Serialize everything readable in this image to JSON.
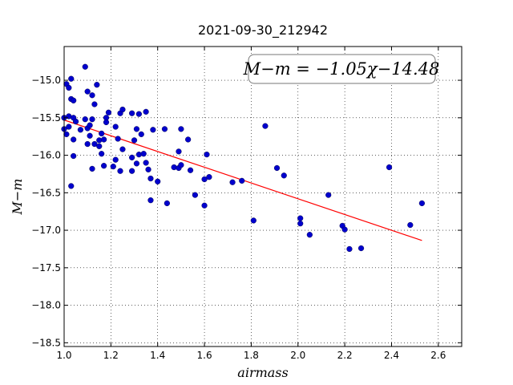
{
  "chart_data": {
    "type": "scatter",
    "title": "2021-09-30_212942",
    "xlabel": "airmass",
    "ylabel": "M−m",
    "xlim": [
      1.0,
      2.7
    ],
    "ylim": [
      -18.55,
      -14.55
    ],
    "x_ticks": [
      1.0,
      1.2,
      1.4,
      1.6,
      1.8,
      2.0,
      2.2,
      2.4,
      2.6
    ],
    "x_tick_labels": [
      "1.0",
      "1.2",
      "1.4",
      "1.6",
      "1.8",
      "2.0",
      "2.2",
      "2.4",
      "2.6"
    ],
    "y_ticks": [
      -15.0,
      -15.5,
      -16.0,
      -16.5,
      -17.0,
      -17.5,
      -18.0,
      -18.5
    ],
    "y_tick_labels": [
      "−15.0",
      "−15.5",
      "−16.0",
      "−16.5",
      "−17.0",
      "−17.5",
      "−18.0",
      "−18.5"
    ],
    "grid": true,
    "annotation": "M−m = −1.05χ−14.48",
    "fit": {
      "slope": -1.05,
      "intercept": -14.48,
      "x_range": [
        1.0,
        2.53
      ],
      "color": "#ff0000"
    },
    "point_color": "#0000cd",
    "points": [
      [
        1.01,
        -15.05
      ],
      [
        1.02,
        -15.1
      ],
      [
        1.03,
        -14.98
      ],
      [
        1.03,
        -15.25
      ],
      [
        1.04,
        -15.27
      ],
      [
        1.09,
        -14.82
      ],
      [
        1.14,
        -15.06
      ],
      [
        1.1,
        -15.15
      ],
      [
        1.12,
        -15.2
      ],
      [
        1.13,
        -15.32
      ],
      [
        1.0,
        -15.5
      ],
      [
        1.02,
        -15.48
      ],
      [
        1.04,
        -15.5
      ],
      [
        1.05,
        -15.55
      ],
      [
        1.07,
        -15.66
      ],
      [
        1.02,
        -15.62
      ],
      [
        1.0,
        -15.65
      ],
      [
        1.01,
        -15.72
      ],
      [
        1.04,
        -15.79
      ],
      [
        1.04,
        -16.01
      ],
      [
        1.03,
        -16.41
      ],
      [
        1.09,
        -15.52
      ],
      [
        1.1,
        -15.64
      ],
      [
        1.11,
        -15.6
      ],
      [
        1.12,
        -15.52
      ],
      [
        1.11,
        -15.74
      ],
      [
        1.1,
        -15.85
      ],
      [
        1.13,
        -15.85
      ],
      [
        1.12,
        -16.18
      ],
      [
        1.15,
        -15.8
      ],
      [
        1.15,
        -15.88
      ],
      [
        1.16,
        -15.71
      ],
      [
        1.16,
        -15.98
      ],
      [
        1.17,
        -15.79
      ],
      [
        1.17,
        -16.14
      ],
      [
        1.18,
        -15.5
      ],
      [
        1.18,
        -15.56
      ],
      [
        1.19,
        -15.43
      ],
      [
        1.21,
        -16.15
      ],
      [
        1.22,
        -15.62
      ],
      [
        1.22,
        -16.06
      ],
      [
        1.23,
        -15.78
      ],
      [
        1.24,
        -15.44
      ],
      [
        1.24,
        -16.21
      ],
      [
        1.25,
        -15.39
      ],
      [
        1.25,
        -15.92
      ],
      [
        1.29,
        -15.44
      ],
      [
        1.29,
        -16.03
      ],
      [
        1.29,
        -16.21
      ],
      [
        1.3,
        -15.8
      ],
      [
        1.31,
        -15.65
      ],
      [
        1.31,
        -16.11
      ],
      [
        1.32,
        -15.45
      ],
      [
        1.32,
        -15.99
      ],
      [
        1.33,
        -15.72
      ],
      [
        1.34,
        -15.98
      ],
      [
        1.35,
        -15.42
      ],
      [
        1.35,
        -16.1
      ],
      [
        1.36,
        -16.19
      ],
      [
        1.37,
        -16.31
      ],
      [
        1.37,
        -16.6
      ],
      [
        1.38,
        -15.66
      ],
      [
        1.4,
        -16.35
      ],
      [
        1.43,
        -15.65
      ],
      [
        1.44,
        -16.64
      ],
      [
        1.47,
        -16.16
      ],
      [
        1.49,
        -16.17
      ],
      [
        1.49,
        -15.95
      ],
      [
        1.5,
        -15.65
      ],
      [
        1.5,
        -16.13
      ],
      [
        1.53,
        -15.79
      ],
      [
        1.54,
        -16.2
      ],
      [
        1.56,
        -16.53
      ],
      [
        1.6,
        -16.32
      ],
      [
        1.6,
        -16.67
      ],
      [
        1.61,
        -15.99
      ],
      [
        1.62,
        -16.29
      ],
      [
        1.72,
        -16.36
      ],
      [
        1.76,
        -16.34
      ],
      [
        1.81,
        -16.87
      ],
      [
        1.86,
        -15.61
      ],
      [
        1.91,
        -16.17
      ],
      [
        1.94,
        -16.27
      ],
      [
        2.01,
        -16.84
      ],
      [
        2.01,
        -16.91
      ],
      [
        2.05,
        -17.06
      ],
      [
        2.13,
        -16.53
      ],
      [
        2.19,
        -16.94
      ],
      [
        2.2,
        -16.99
      ],
      [
        2.22,
        -17.25
      ],
      [
        2.27,
        -17.24
      ],
      [
        2.39,
        -16.16
      ],
      [
        2.48,
        -16.93
      ],
      [
        2.53,
        -16.64
      ]
    ]
  }
}
